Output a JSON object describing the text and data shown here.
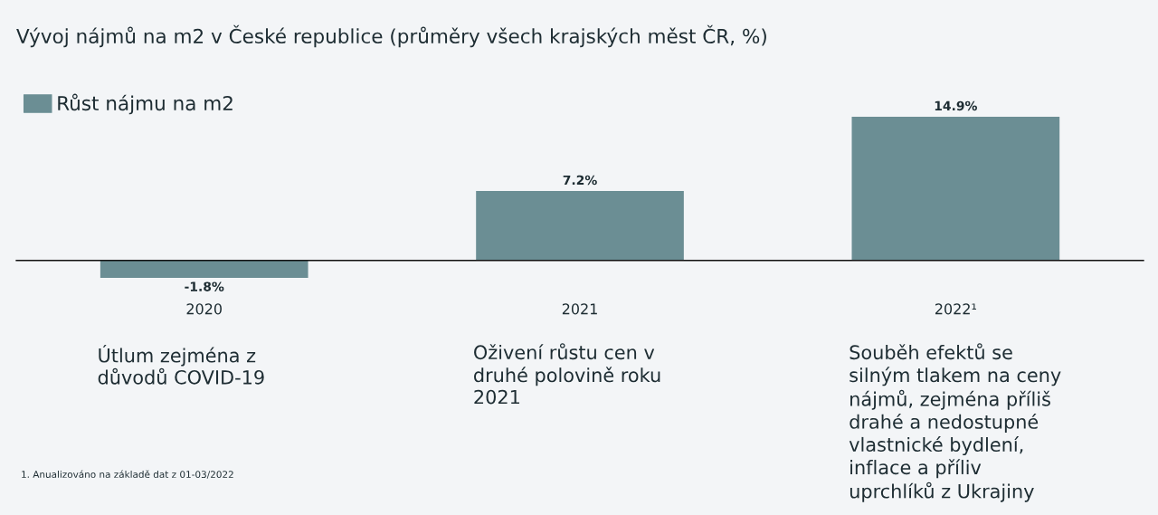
{
  "chart_data": {
    "type": "bar",
    "title": "Vývoj nájmů na m2 v České republice (průměry všech krajských měst ČR, %)",
    "categories": [
      "2020",
      "2021",
      "2022¹"
    ],
    "series": [
      {
        "name": "Růst nájmu na m2",
        "color": "#6b8e94",
        "values": [
          -1.8,
          7.2,
          14.9
        ],
        "value_labels": [
          "-1.8%",
          "7.2%",
          "14.9%"
        ]
      }
    ],
    "legend": "top left",
    "tick_labels": "x",
    "annotations": [
      "Útlum zejména z\ndůvodů COVID-19",
      "Oživení růstu cen v\ndruhé polovině roku\n2021",
      "Souběh efektů se\nsilným tlakem na ceny\nnájmů, zejména příliš\ndrahé a nedostupné\nvlastnické bydlení,\ninflace a příliv\nuprchlíků z Ukrajiny",
      "1. Anualizováno na základě dat z 01-03/2022"
    ]
  }
}
